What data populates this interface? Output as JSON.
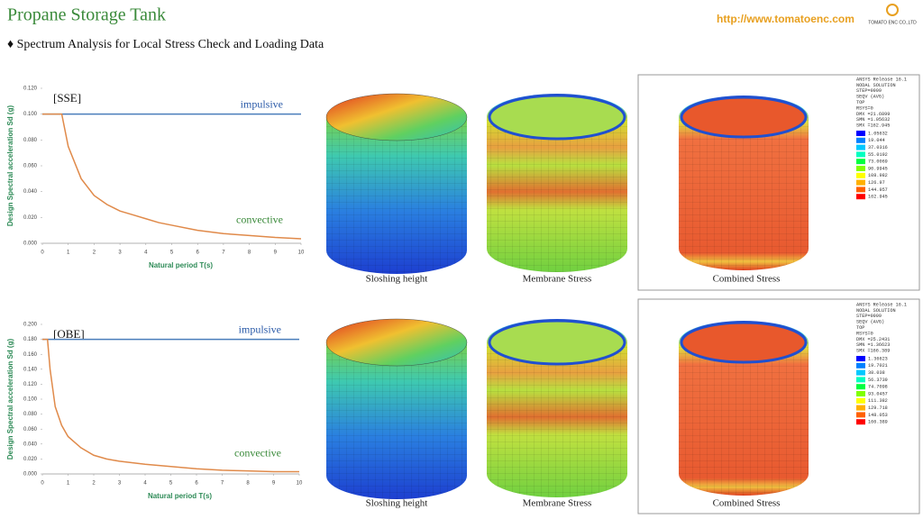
{
  "header": {
    "title": "Propane Storage Tank",
    "subtitle": "♦ Spectrum Analysis for Local Stress Check and Loading Data",
    "url": "http://www.tomatoenc.com",
    "logo": "TOMATO ENC CO.,LTD"
  },
  "chart_data": [
    {
      "type": "line",
      "title": "[SSE]",
      "x_label": "Natural period T(s)",
      "y_label": "Design Spectral acceleration Sd (g)",
      "x": [
        0,
        0.5,
        0.75,
        1,
        1.5,
        2,
        2.5,
        3,
        3.5,
        4,
        4.5,
        5,
        6,
        7,
        8,
        9,
        10
      ],
      "series": [
        {
          "name": "impulsive",
          "color": "#4a7ebb",
          "values": [
            0.1,
            0.1,
            0.1,
            0.1,
            0.1,
            0.1,
            0.1,
            0.1,
            0.1,
            0.1,
            0.1,
            0.1,
            0.1,
            0.1,
            0.1,
            0.1,
            0.1
          ]
        },
        {
          "name": "convective",
          "color": "#e08a4a",
          "values": [
            0.1,
            0.1,
            0.1,
            0.075,
            0.05,
            0.037,
            0.03,
            0.025,
            0.022,
            0.019,
            0.016,
            0.014,
            0.01,
            0.0075,
            0.006,
            0.0045,
            0.0035
          ]
        }
      ],
      "xlim": [
        0,
        10
      ],
      "xticks": [
        0,
        1,
        2,
        3,
        4,
        5,
        6,
        7,
        8,
        9,
        10
      ],
      "ylim": [
        0,
        0.12
      ],
      "yticks": [
        {
          "value": 0,
          "label": "0.000"
        },
        {
          "value": 0.02,
          "label": "0.020"
        },
        {
          "value": 0.04,
          "label": "0.040"
        },
        {
          "value": 0.06,
          "label": "0.060"
        },
        {
          "value": 0.08,
          "label": "0.080"
        },
        {
          "value": 0.1,
          "label": "0.100"
        },
        {
          "value": 0.12,
          "label": "0.120"
        }
      ]
    },
    {
      "type": "line",
      "title": "[OBE]",
      "x_label": "Natural period T(s)",
      "y_label": "Design Spectral acceleration Sd (g)",
      "x": [
        0,
        0.2,
        0.3,
        0.5,
        0.75,
        1,
        1.5,
        2,
        2.5,
        3,
        4,
        5,
        6,
        7,
        8,
        9,
        10
      ],
      "series": [
        {
          "name": "impulsive",
          "color": "#4a7ebb",
          "values": [
            0.18,
            0.18,
            0.18,
            0.18,
            0.18,
            0.18,
            0.18,
            0.18,
            0.18,
            0.18,
            0.18,
            0.18,
            0.18,
            0.18,
            0.18,
            0.18,
            0.18
          ]
        },
        {
          "name": "convective",
          "color": "#e08a4a",
          "values": [
            0.18,
            0.18,
            0.14,
            0.09,
            0.065,
            0.05,
            0.035,
            0.025,
            0.02,
            0.017,
            0.013,
            0.01,
            0.007,
            0.005,
            0.004,
            0.003,
            0.003
          ]
        }
      ],
      "xlim": [
        0,
        10
      ],
      "xticks": [
        0,
        1,
        2,
        3,
        4,
        5,
        6,
        7,
        8,
        9,
        10
      ],
      "ylim": [
        0,
        0.2
      ],
      "yticks": [
        {
          "value": 0,
          "label": "0.000"
        },
        {
          "value": 0.02,
          "label": "0.020"
        },
        {
          "value": 0.04,
          "label": "0.040"
        },
        {
          "value": 0.06,
          "label": "0.060"
        },
        {
          "value": 0.08,
          "label": "0.080"
        },
        {
          "value": 0.1,
          "label": "0.100"
        },
        {
          "value": 0.12,
          "label": "0.120"
        },
        {
          "value": 0.14,
          "label": "0.140"
        },
        {
          "value": 0.16,
          "label": "0.160"
        },
        {
          "value": 0.18,
          "label": "0.180"
        },
        {
          "value": 0.2,
          "label": "0.200"
        }
      ]
    }
  ],
  "rows": [
    {
      "captions": [
        "Sloshing height",
        "Membrane Stress",
        "Combined Stress"
      ],
      "legend_header": [
        "ANSYS Release 16.1",
        "NODAL SOLUTION",
        "STEP=9999",
        "SEQV     (AVG)",
        "TOP",
        "RSYS=0",
        "DMX =21.6899",
        "SMN =1.05632",
        "SMX =162.945"
      ],
      "levels": [
        "1.05632",
        "19.044",
        "37.0316",
        "55.0192",
        "73.0069",
        "90.9945",
        "108.982",
        "126.97",
        "144.957",
        "162.945"
      ]
    },
    {
      "captions": [
        "Sloshing height",
        "Membrane Stress",
        "Combined Stress"
      ],
      "legend_header": [
        "ANSYS Release 16.1",
        "NODAL SOLUTION",
        "STEP=9999",
        "SEQV     (AVG)",
        "TOP",
        "RSYS=0",
        "DMX =25.2431",
        "SMN =1.36623",
        "SMX =166.389"
      ],
      "levels": [
        "1.36623",
        "19.7021",
        "38.038",
        "56.3739",
        "74.7098",
        "93.0457",
        "111.382",
        "129.718",
        "148.053",
        "166.389"
      ]
    }
  ]
}
